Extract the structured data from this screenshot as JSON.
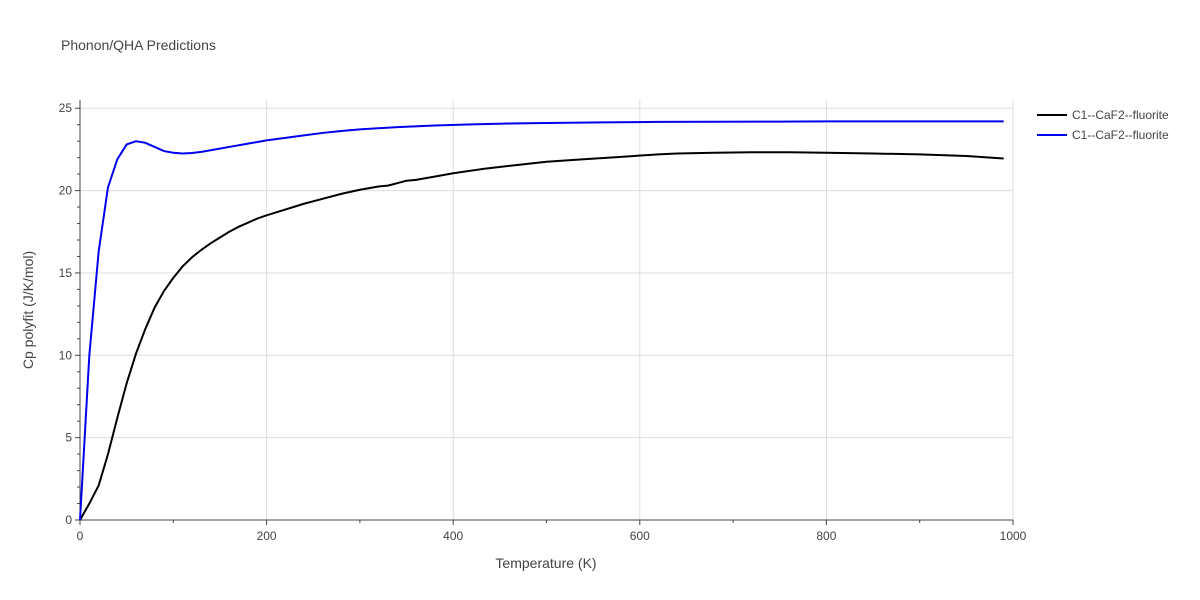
{
  "chart_data": {
    "type": "line",
    "title": "Phonon/QHA Predictions",
    "xlabel": "Temperature (K)",
    "ylabel": "Cp polyfit (J/K/mol)",
    "xlim": [
      0,
      1000
    ],
    "ylim": [
      0,
      25.5
    ],
    "x_ticks": [
      0,
      200,
      400,
      600,
      800,
      1000
    ],
    "y_ticks": [
      0,
      5,
      10,
      15,
      20,
      25
    ],
    "x_tick_labels": [
      "0",
      "200",
      "400",
      "600",
      "800",
      "1000"
    ],
    "y_tick_labels": [
      "0",
      "5",
      "10",
      "15",
      "20",
      "25"
    ],
    "grid": true,
    "legend_position": "top-right outside",
    "series": [
      {
        "name": "C1--CaF2--fluorite",
        "color": "#000000",
        "x": [
          0,
          10,
          20,
          30,
          40,
          50,
          60,
          70,
          80,
          90,
          100,
          110,
          120,
          130,
          140,
          150,
          160,
          170,
          180,
          190,
          200,
          220,
          240,
          260,
          280,
          300,
          320,
          330,
          340,
          350,
          360,
          380,
          400,
          430,
          460,
          500,
          540,
          580,
          620,
          640,
          680,
          720,
          760,
          800,
          850,
          900,
          950,
          990
        ],
        "y": [
          0,
          1.0,
          2.1,
          4.0,
          6.2,
          8.3,
          10.1,
          11.6,
          12.9,
          13.9,
          14.7,
          15.4,
          15.95,
          16.4,
          16.8,
          17.15,
          17.5,
          17.8,
          18.05,
          18.3,
          18.5,
          18.85,
          19.2,
          19.5,
          19.8,
          20.05,
          20.25,
          20.3,
          20.45,
          20.6,
          20.65,
          20.85,
          21.05,
          21.3,
          21.5,
          21.75,
          21.9,
          22.05,
          22.2,
          22.25,
          22.3,
          22.33,
          22.33,
          22.3,
          22.25,
          22.2,
          22.1,
          21.95
        ]
      },
      {
        "name": "C1--CaF2--fluorite",
        "color": "#0000ee",
        "x": [
          0,
          5,
          10,
          20,
          30,
          40,
          50,
          60,
          70,
          80,
          90,
          100,
          110,
          120,
          130,
          140,
          160,
          180,
          200,
          220,
          240,
          260,
          280,
          300,
          340,
          380,
          420,
          460,
          500,
          560,
          620,
          680,
          750,
          800,
          900,
          990
        ],
        "y": [
          0,
          5.0,
          10.0,
          16.3,
          20.2,
          21.9,
          22.8,
          23.0,
          22.9,
          22.65,
          22.4,
          22.3,
          22.25,
          22.28,
          22.35,
          22.45,
          22.65,
          22.85,
          23.05,
          23.2,
          23.35,
          23.5,
          23.62,
          23.72,
          23.85,
          23.95,
          24.02,
          24.07,
          24.1,
          24.14,
          24.17,
          24.18,
          24.19,
          24.2,
          24.2,
          24.2
        ]
      }
    ]
  }
}
